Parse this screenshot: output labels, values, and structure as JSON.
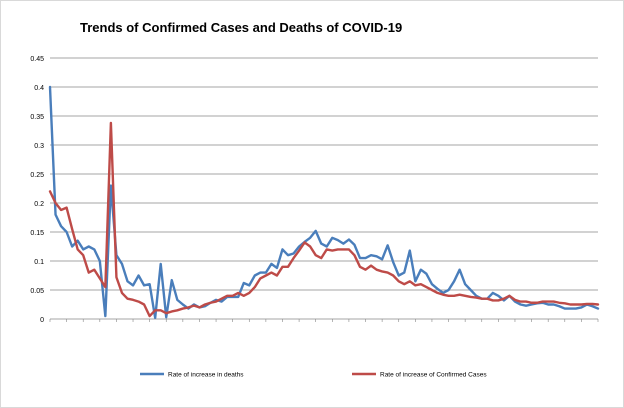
{
  "chart_data": {
    "type": "line",
    "title": "Trends of  Confirmed Cases and Deaths of COVID-19",
    "xlabel": "",
    "ylabel": "",
    "ylim": [
      0,
      0.45
    ],
    "yticks": [
      0,
      0.05,
      0.1,
      0.15,
      0.2,
      0.25,
      0.3,
      0.35,
      0.4,
      0.45
    ],
    "ytick_labels": [
      "0",
      "0.05",
      "0.1",
      "0.15",
      "0.2",
      "0.25",
      "0.3",
      "0.35",
      "0.4",
      "0.45"
    ],
    "grid": "horizontal",
    "legend_position": "bottom",
    "x_count": 100,
    "series": [
      {
        "name": "Rate of increase in  deaths",
        "color": "#4a7ebb",
        "values": [
          0.4,
          0.18,
          0.16,
          0.15,
          0.125,
          0.135,
          0.12,
          0.125,
          0.12,
          0.1,
          0.005,
          0.23,
          0.11,
          0.095,
          0.065,
          0.058,
          0.075,
          0.058,
          0.06,
          0.002,
          0.095,
          0.003,
          0.067,
          0.033,
          0.025,
          0.018,
          0.025,
          0.02,
          0.022,
          0.028,
          0.033,
          0.03,
          0.038,
          0.038,
          0.038,
          0.062,
          0.058,
          0.075,
          0.08,
          0.08,
          0.095,
          0.088,
          0.12,
          0.11,
          0.113,
          0.125,
          0.133,
          0.14,
          0.152,
          0.13,
          0.125,
          0.14,
          0.136,
          0.13,
          0.137,
          0.128,
          0.105,
          0.105,
          0.11,
          0.108,
          0.103,
          0.127,
          0.098,
          0.075,
          0.08,
          0.118,
          0.065,
          0.085,
          0.078,
          0.06,
          0.052,
          0.045,
          0.05,
          0.065,
          0.085,
          0.06,
          0.05,
          0.04,
          0.035,
          0.035,
          0.045,
          0.04,
          0.032,
          0.04,
          0.03,
          0.025,
          0.023,
          0.025,
          0.027,
          0.028,
          0.025,
          0.025,
          0.022,
          0.018,
          0.018,
          0.018,
          0.02,
          0.025,
          0.022,
          0.018
        ]
      },
      {
        "name": "Rate of increase of  Confirmed Cases",
        "color": "#be4b48",
        "values": [
          0.22,
          0.2,
          0.188,
          0.192,
          0.155,
          0.12,
          0.11,
          0.08,
          0.085,
          0.07,
          0.055,
          0.338,
          0.072,
          0.045,
          0.035,
          0.033,
          0.03,
          0.025,
          0.005,
          0.015,
          0.015,
          0.01,
          0.013,
          0.015,
          0.018,
          0.02,
          0.023,
          0.02,
          0.025,
          0.028,
          0.03,
          0.035,
          0.04,
          0.04,
          0.045,
          0.04,
          0.045,
          0.055,
          0.07,
          0.075,
          0.08,
          0.075,
          0.09,
          0.09,
          0.105,
          0.118,
          0.132,
          0.125,
          0.11,
          0.105,
          0.12,
          0.118,
          0.12,
          0.12,
          0.12,
          0.11,
          0.09,
          0.085,
          0.092,
          0.085,
          0.082,
          0.08,
          0.075,
          0.065,
          0.06,
          0.065,
          0.058,
          0.06,
          0.055,
          0.05,
          0.045,
          0.042,
          0.04,
          0.04,
          0.042,
          0.04,
          0.038,
          0.037,
          0.035,
          0.035,
          0.032,
          0.032,
          0.035,
          0.04,
          0.033,
          0.03,
          0.03,
          0.028,
          0.028,
          0.03,
          0.03,
          0.03,
          0.028,
          0.027,
          0.025,
          0.025,
          0.025,
          0.026,
          0.026,
          0.025
        ]
      }
    ]
  }
}
